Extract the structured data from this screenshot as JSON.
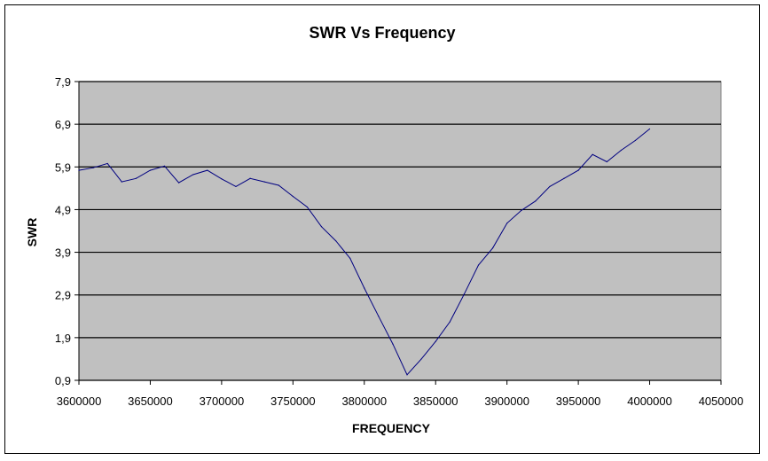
{
  "chart_data": {
    "type": "line",
    "title": "SWR Vs Frequency",
    "xlabel": "FREQUENCY",
    "ylabel": "SWR",
    "xlim": [
      3600000,
      4050000
    ],
    "ylim": [
      0.9,
      7.9
    ],
    "x_ticks": [
      "3600000",
      "3650000",
      "3700000",
      "3750000",
      "3800000",
      "3850000",
      "3900000",
      "3950000",
      "4000000",
      "4050000"
    ],
    "y_ticks": [
      "0,9",
      "1,9",
      "2,9",
      "3,9",
      "4,9",
      "5,9",
      "6,9",
      "7,9"
    ],
    "grid": true,
    "plot_background": "#c0c0c0",
    "line_color": "#000080",
    "series": [
      {
        "name": "SWR",
        "x": [
          3600000,
          3610000,
          3620000,
          3630000,
          3640000,
          3650000,
          3660000,
          3670000,
          3680000,
          3690000,
          3700000,
          3710000,
          3720000,
          3730000,
          3740000,
          3750000,
          3760000,
          3770000,
          3780000,
          3790000,
          3800000,
          3810000,
          3820000,
          3830000,
          3840000,
          3850000,
          3860000,
          3870000,
          3880000,
          3890000,
          3900000,
          3910000,
          3920000,
          3930000,
          3940000,
          3950000,
          3960000,
          3970000,
          3980000,
          3990000,
          4000000
        ],
        "values": [
          5.82,
          5.88,
          5.98,
          5.55,
          5.63,
          5.82,
          5.92,
          5.53,
          5.72,
          5.82,
          5.62,
          5.44,
          5.63,
          5.55,
          5.47,
          5.21,
          4.96,
          4.5,
          4.17,
          3.76,
          3.06,
          2.4,
          1.75,
          1.03,
          1.4,
          1.81,
          2.27,
          2.92,
          3.6,
          4.0,
          4.58,
          4.88,
          5.1,
          5.44,
          5.63,
          5.82,
          6.19,
          6.02,
          6.29,
          6.52,
          6.79
        ]
      }
    ]
  }
}
